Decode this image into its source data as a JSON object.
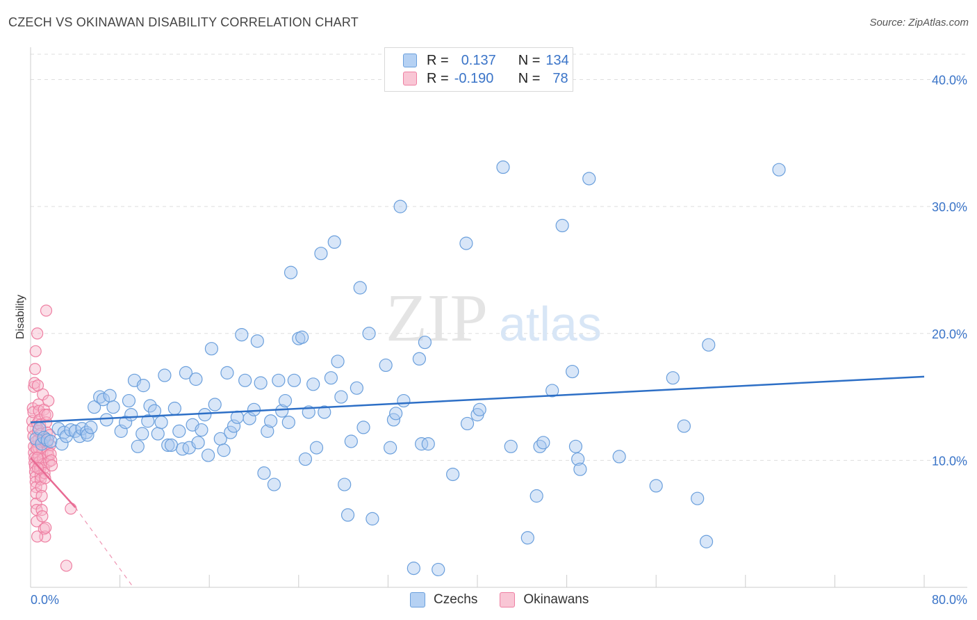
{
  "title": "CZECH VS OKINAWAN DISABILITY CORRELATION CHART",
  "source": "Source: ZipAtlas.com",
  "watermark": {
    "zip": "ZIP",
    "atlas": "atlas"
  },
  "legend_top": {
    "row1": {
      "r_label": "R =",
      "r_value": "0.137",
      "n_label": "N =",
      "n_value": "134"
    },
    "row2": {
      "r_label": "R =",
      "r_value": "-0.190",
      "n_label": "N =",
      "n_value": "78"
    }
  },
  "legend_bottom": {
    "czechs": "Czechs",
    "okinawans": "Okinawans"
  },
  "colors": {
    "czech_fill": "#a8c8f0",
    "czech_stroke": "#6a9fdc",
    "czech_line": "#2d6fc6",
    "okinawan_fill": "#f7b6c9",
    "okinawan_stroke": "#ee7fa2",
    "okinawan_line": "#e86a93",
    "axis_text": "#3a74c8",
    "grid": "#dddddd"
  },
  "chart_data": {
    "type": "scatter",
    "title": "CZECH VS OKINAWAN DISABILITY CORRELATION CHART",
    "xlabel": "",
    "ylabel": "Disability",
    "xlim": [
      0,
      80
    ],
    "ylim": [
      0,
      42
    ],
    "x_tick_labels": [
      "0.0%",
      "80.0%"
    ],
    "y_ticks": [
      10,
      20,
      30,
      40
    ],
    "y_tick_labels": [
      "10.0%",
      "20.0%",
      "30.0%",
      "40.0%"
    ],
    "grid": true,
    "series": [
      {
        "name": "Czechs",
        "r": 0.137,
        "n": 134,
        "trend": {
          "x": [
            0,
            80
          ],
          "y": [
            13.0,
            16.6
          ],
          "style": "solid"
        },
        "points": [
          [
            0.5,
            11.7
          ],
          [
            0.8,
            12.5
          ],
          [
            1.0,
            11.3
          ],
          [
            1.2,
            11.8
          ],
          [
            1.5,
            11.6
          ],
          [
            1.8,
            11.5
          ],
          [
            2.5,
            12.5
          ],
          [
            2.8,
            11.3
          ],
          [
            3.0,
            12.2
          ],
          [
            3.2,
            11.9
          ],
          [
            3.6,
            12.4
          ],
          [
            4.0,
            12.3
          ],
          [
            4.4,
            11.9
          ],
          [
            4.6,
            12.5
          ],
          [
            5.0,
            12.2
          ],
          [
            5.1,
            12.0
          ],
          [
            5.4,
            12.6
          ],
          [
            5.7,
            14.2
          ],
          [
            6.2,
            15.0
          ],
          [
            6.5,
            14.8
          ],
          [
            6.8,
            13.2
          ],
          [
            7.1,
            15.1
          ],
          [
            7.4,
            14.2
          ],
          [
            8.1,
            12.3
          ],
          [
            8.5,
            13.0
          ],
          [
            8.8,
            14.7
          ],
          [
            9.0,
            13.6
          ],
          [
            9.3,
            16.3
          ],
          [
            9.6,
            11.1
          ],
          [
            10.0,
            12.1
          ],
          [
            10.1,
            15.9
          ],
          [
            10.5,
            13.1
          ],
          [
            10.7,
            14.3
          ],
          [
            11.1,
            13.9
          ],
          [
            11.4,
            12.1
          ],
          [
            11.7,
            13.0
          ],
          [
            12.0,
            16.7
          ],
          [
            12.3,
            11.2
          ],
          [
            12.6,
            11.2
          ],
          [
            12.9,
            14.1
          ],
          [
            13.3,
            12.3
          ],
          [
            13.6,
            10.9
          ],
          [
            13.9,
            16.9
          ],
          [
            14.2,
            11.0
          ],
          [
            14.5,
            12.8
          ],
          [
            14.8,
            16.4
          ],
          [
            15.0,
            11.4
          ],
          [
            15.3,
            12.4
          ],
          [
            15.6,
            13.6
          ],
          [
            15.9,
            10.4
          ],
          [
            16.2,
            18.8
          ],
          [
            16.5,
            14.4
          ],
          [
            17.0,
            11.7
          ],
          [
            17.3,
            10.8
          ],
          [
            17.6,
            16.9
          ],
          [
            17.9,
            12.2
          ],
          [
            18.2,
            12.7
          ],
          [
            18.5,
            13.4
          ],
          [
            18.9,
            19.9
          ],
          [
            19.2,
            16.3
          ],
          [
            19.6,
            13.3
          ],
          [
            20.0,
            14.0
          ],
          [
            20.3,
            19.4
          ],
          [
            20.6,
            16.1
          ],
          [
            20.9,
            9.0
          ],
          [
            21.2,
            12.3
          ],
          [
            21.5,
            13.1
          ],
          [
            21.8,
            8.1
          ],
          [
            22.2,
            16.3
          ],
          [
            22.5,
            13.9
          ],
          [
            22.8,
            14.7
          ],
          [
            23.1,
            13.0
          ],
          [
            23.3,
            24.8
          ],
          [
            23.6,
            16.3
          ],
          [
            24.0,
            19.6
          ],
          [
            24.3,
            19.7
          ],
          [
            24.6,
            10.1
          ],
          [
            24.9,
            13.8
          ],
          [
            25.3,
            16.0
          ],
          [
            25.6,
            11.0
          ],
          [
            26.0,
            26.3
          ],
          [
            26.3,
            13.8
          ],
          [
            26.9,
            16.5
          ],
          [
            27.2,
            27.2
          ],
          [
            27.5,
            17.8
          ],
          [
            27.8,
            15.0
          ],
          [
            28.1,
            8.1
          ],
          [
            28.4,
            5.7
          ],
          [
            28.7,
            11.5
          ],
          [
            29.2,
            15.7
          ],
          [
            29.5,
            23.6
          ],
          [
            29.8,
            12.6
          ],
          [
            30.3,
            20.0
          ],
          [
            30.6,
            5.4
          ],
          [
            31.8,
            17.5
          ],
          [
            32.2,
            11.0
          ],
          [
            32.5,
            13.2
          ],
          [
            32.7,
            13.7
          ],
          [
            33.1,
            30.0
          ],
          [
            33.4,
            14.7
          ],
          [
            34.3,
            1.5
          ],
          [
            34.8,
            18.0
          ],
          [
            35.0,
            11.3
          ],
          [
            35.3,
            19.3
          ],
          [
            35.6,
            11.3
          ],
          [
            36.5,
            1.4
          ],
          [
            37.8,
            8.9
          ],
          [
            39.0,
            27.1
          ],
          [
            39.1,
            12.9
          ],
          [
            40.0,
            13.6
          ],
          [
            40.2,
            14.0
          ],
          [
            42.3,
            33.1
          ],
          [
            43.0,
            11.1
          ],
          [
            44.5,
            3.9
          ],
          [
            45.3,
            7.2
          ],
          [
            45.6,
            11.1
          ],
          [
            45.9,
            11.4
          ],
          [
            46.7,
            15.5
          ],
          [
            47.6,
            28.5
          ],
          [
            48.5,
            17.0
          ],
          [
            48.8,
            11.1
          ],
          [
            49.0,
            10.1
          ],
          [
            49.2,
            9.3
          ],
          [
            50.0,
            32.2
          ],
          [
            52.7,
            10.3
          ],
          [
            56.0,
            8.0
          ],
          [
            57.5,
            16.5
          ],
          [
            58.5,
            12.7
          ],
          [
            59.7,
            7.0
          ],
          [
            60.5,
            3.6
          ],
          [
            60.7,
            19.1
          ],
          [
            67.0,
            32.9
          ]
        ]
      },
      {
        "name": "Okinawans",
        "r": -0.19,
        "n": 78,
        "trend": {
          "x": [
            0,
            4.0
          ],
          "y": [
            10.2,
            6.3
          ],
          "style": "solid",
          "extended_to": [
            9.2,
            0
          ],
          "extended_style": "dashed"
        },
        "points": [
          [
            0.15,
            13.1
          ],
          [
            0.2,
            12.5
          ],
          [
            0.25,
            11.9
          ],
          [
            0.3,
            11.1
          ],
          [
            0.3,
            10.6
          ],
          [
            0.35,
            10.2
          ],
          [
            0.35,
            9.8
          ],
          [
            0.4,
            9.5
          ],
          [
            0.4,
            9.1
          ],
          [
            0.45,
            8.7
          ],
          [
            0.45,
            8.3
          ],
          [
            0.5,
            7.9
          ],
          [
            0.5,
            7.4
          ],
          [
            0.5,
            6.6
          ],
          [
            0.55,
            6.1
          ],
          [
            0.55,
            5.2
          ],
          [
            0.2,
            14.1
          ],
          [
            0.25,
            13.8
          ],
          [
            0.3,
            15.8
          ],
          [
            0.35,
            16.1
          ],
          [
            0.4,
            17.2
          ],
          [
            0.45,
            18.6
          ],
          [
            0.6,
            20.0
          ],
          [
            0.6,
            12.9
          ],
          [
            0.65,
            12.3
          ],
          [
            0.7,
            11.6
          ],
          [
            0.7,
            11.0
          ],
          [
            0.75,
            10.3
          ],
          [
            0.8,
            9.9
          ],
          [
            0.8,
            9.6
          ],
          [
            0.85,
            9.3
          ],
          [
            0.9,
            8.8
          ],
          [
            0.9,
            8.5
          ],
          [
            0.95,
            7.9
          ],
          [
            1.0,
            7.2
          ],
          [
            1.0,
            6.1
          ],
          [
            1.05,
            5.6
          ],
          [
            0.65,
            15.9
          ],
          [
            0.7,
            14.4
          ],
          [
            0.75,
            13.9
          ],
          [
            0.8,
            13.2
          ],
          [
            0.85,
            12.8
          ],
          [
            0.9,
            12.1
          ],
          [
            0.95,
            11.5
          ],
          [
            1.0,
            11.0
          ],
          [
            1.05,
            10.6
          ],
          [
            1.1,
            10.1
          ],
          [
            1.15,
            9.7
          ],
          [
            1.2,
            9.4
          ],
          [
            1.25,
            9.0
          ],
          [
            1.3,
            8.6
          ],
          [
            1.1,
            15.2
          ],
          [
            1.2,
            14.0
          ],
          [
            1.3,
            13.6
          ],
          [
            1.4,
            13.0
          ],
          [
            1.45,
            12.2
          ],
          [
            1.5,
            11.4
          ],
          [
            1.55,
            10.8
          ],
          [
            1.6,
            10.4
          ],
          [
            1.65,
            9.9
          ],
          [
            1.4,
            21.8
          ],
          [
            1.5,
            13.6
          ],
          [
            1.6,
            14.7
          ],
          [
            1.7,
            12.0
          ],
          [
            1.75,
            11.2
          ],
          [
            1.8,
            10.5
          ],
          [
            1.85,
            10.0
          ],
          [
            1.9,
            9.6
          ],
          [
            1.2,
            4.6
          ],
          [
            1.3,
            4.0
          ],
          [
            1.35,
            4.7
          ],
          [
            0.6,
            4.0
          ],
          [
            3.2,
            1.7
          ],
          [
            3.6,
            6.2
          ],
          [
            0.5,
            11.5
          ],
          [
            0.55,
            10.9
          ],
          [
            0.6,
            10.2
          ],
          [
            0.65,
            9.4
          ]
        ]
      }
    ]
  }
}
